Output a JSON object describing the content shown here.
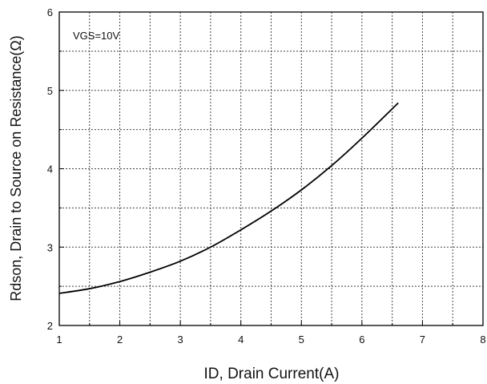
{
  "chart_data": {
    "type": "line",
    "annotation": "VGS=10V",
    "xlabel": "ID,  Drain Current(A)",
    "ylabel": "Rdson, Drain to Source on Resistance(Ω)",
    "xlim": [
      1,
      8
    ],
    "ylim": [
      2,
      6
    ],
    "x_ticks": [
      "1",
      "2",
      "3",
      "4",
      "5",
      "6",
      "7",
      "8"
    ],
    "y_ticks": [
      "2",
      "3",
      "4",
      "5",
      "6"
    ],
    "grid": "dashed at half-unit steps",
    "series": [
      {
        "x": [
          1.0,
          1.5,
          2.0,
          2.5,
          3.0,
          3.5,
          4.0,
          4.5,
          5.0,
          5.5,
          6.0,
          6.6
        ],
        "y": [
          2.41,
          2.47,
          2.56,
          2.68,
          2.82,
          3.0,
          3.22,
          3.46,
          3.73,
          4.04,
          4.39,
          4.84
        ]
      }
    ]
  },
  "colors": {
    "frame": "#000000",
    "grid": "#444444",
    "line": "#000000"
  }
}
